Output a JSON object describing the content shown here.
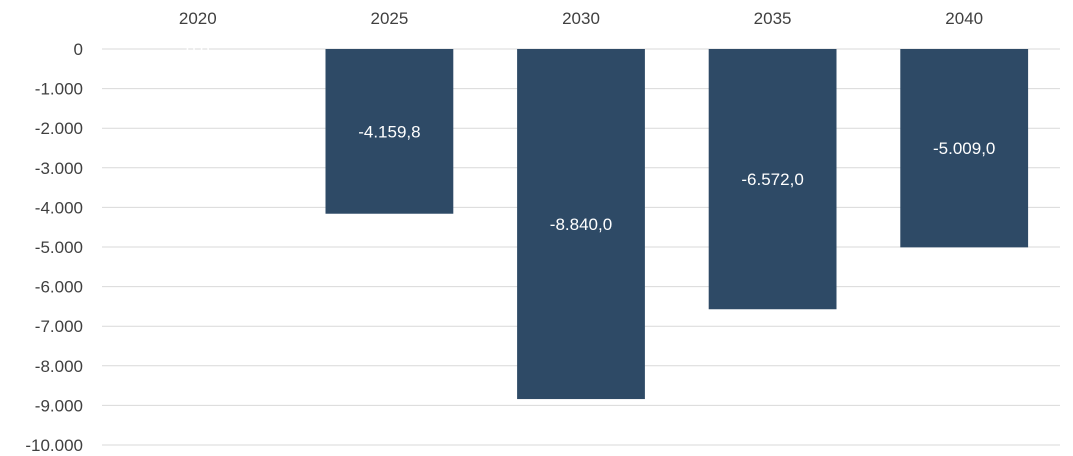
{
  "chart_data": {
    "type": "bar",
    "categories": [
      "2020",
      "2025",
      "2030",
      "2035",
      "2040"
    ],
    "values": [
      0,
      -4159.8,
      -8840.0,
      -6572.0,
      -5009.0
    ],
    "data_labels": [
      "0,0",
      "-4.159,8",
      "-8.840,0",
      "-6.572,0",
      "-5.009,0"
    ],
    "ylim": [
      -10000,
      0
    ],
    "yticks": [
      0,
      -1000,
      -2000,
      -3000,
      -4000,
      -5000,
      -6000,
      -7000,
      -8000,
      -9000,
      -10000
    ],
    "ytick_labels": [
      "0",
      "-1.000",
      "-2.000",
      "-3.000",
      "-4.000",
      "-5.000",
      "-6.000",
      "-7.000",
      "-8.000",
      "-9.000",
      "-10.000"
    ],
    "grid": true,
    "xaxis_position": "top",
    "bar_color": "#2e4a66",
    "grid_color": "#d9d9d9",
    "title": "",
    "xlabel": "",
    "ylabel": ""
  }
}
